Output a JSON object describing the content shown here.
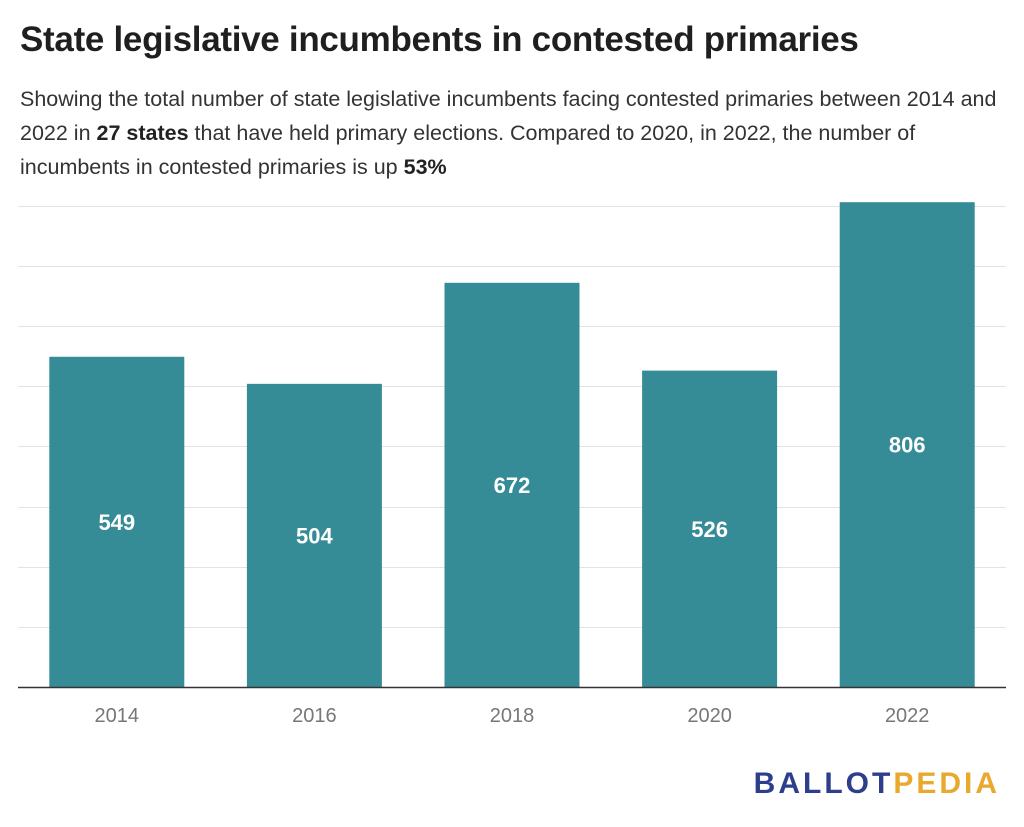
{
  "title": "State legislative incumbents in contested primaries",
  "subtitle": {
    "part1": "Showing the total number of state legislative incumbents facing contested primaries between 2014 and 2022 in ",
    "bold1": "27 states",
    "part2": " that have held primary elections. Compared to 2020, in 2022, the number of incumbents in contested primaries is up ",
    "bold2": "53%"
  },
  "colors": {
    "bar": "#358c97",
    "grid": "#e3e3e3",
    "axis": "#333333",
    "tick_label": "#777777",
    "data_label": "#ffffff"
  },
  "chart_data": {
    "type": "bar",
    "categories": [
      "2014",
      "2016",
      "2018",
      "2020",
      "2022"
    ],
    "values": [
      549,
      504,
      672,
      526,
      806
    ],
    "data_labels": [
      "549",
      "504",
      "672",
      "526",
      "806"
    ],
    "xlabel": "",
    "ylabel": "",
    "ylim": [
      0,
      800
    ],
    "grid": true,
    "legend": "none"
  },
  "logo": {
    "part_a": "BALLOT",
    "part_b": "PEDIA"
  }
}
